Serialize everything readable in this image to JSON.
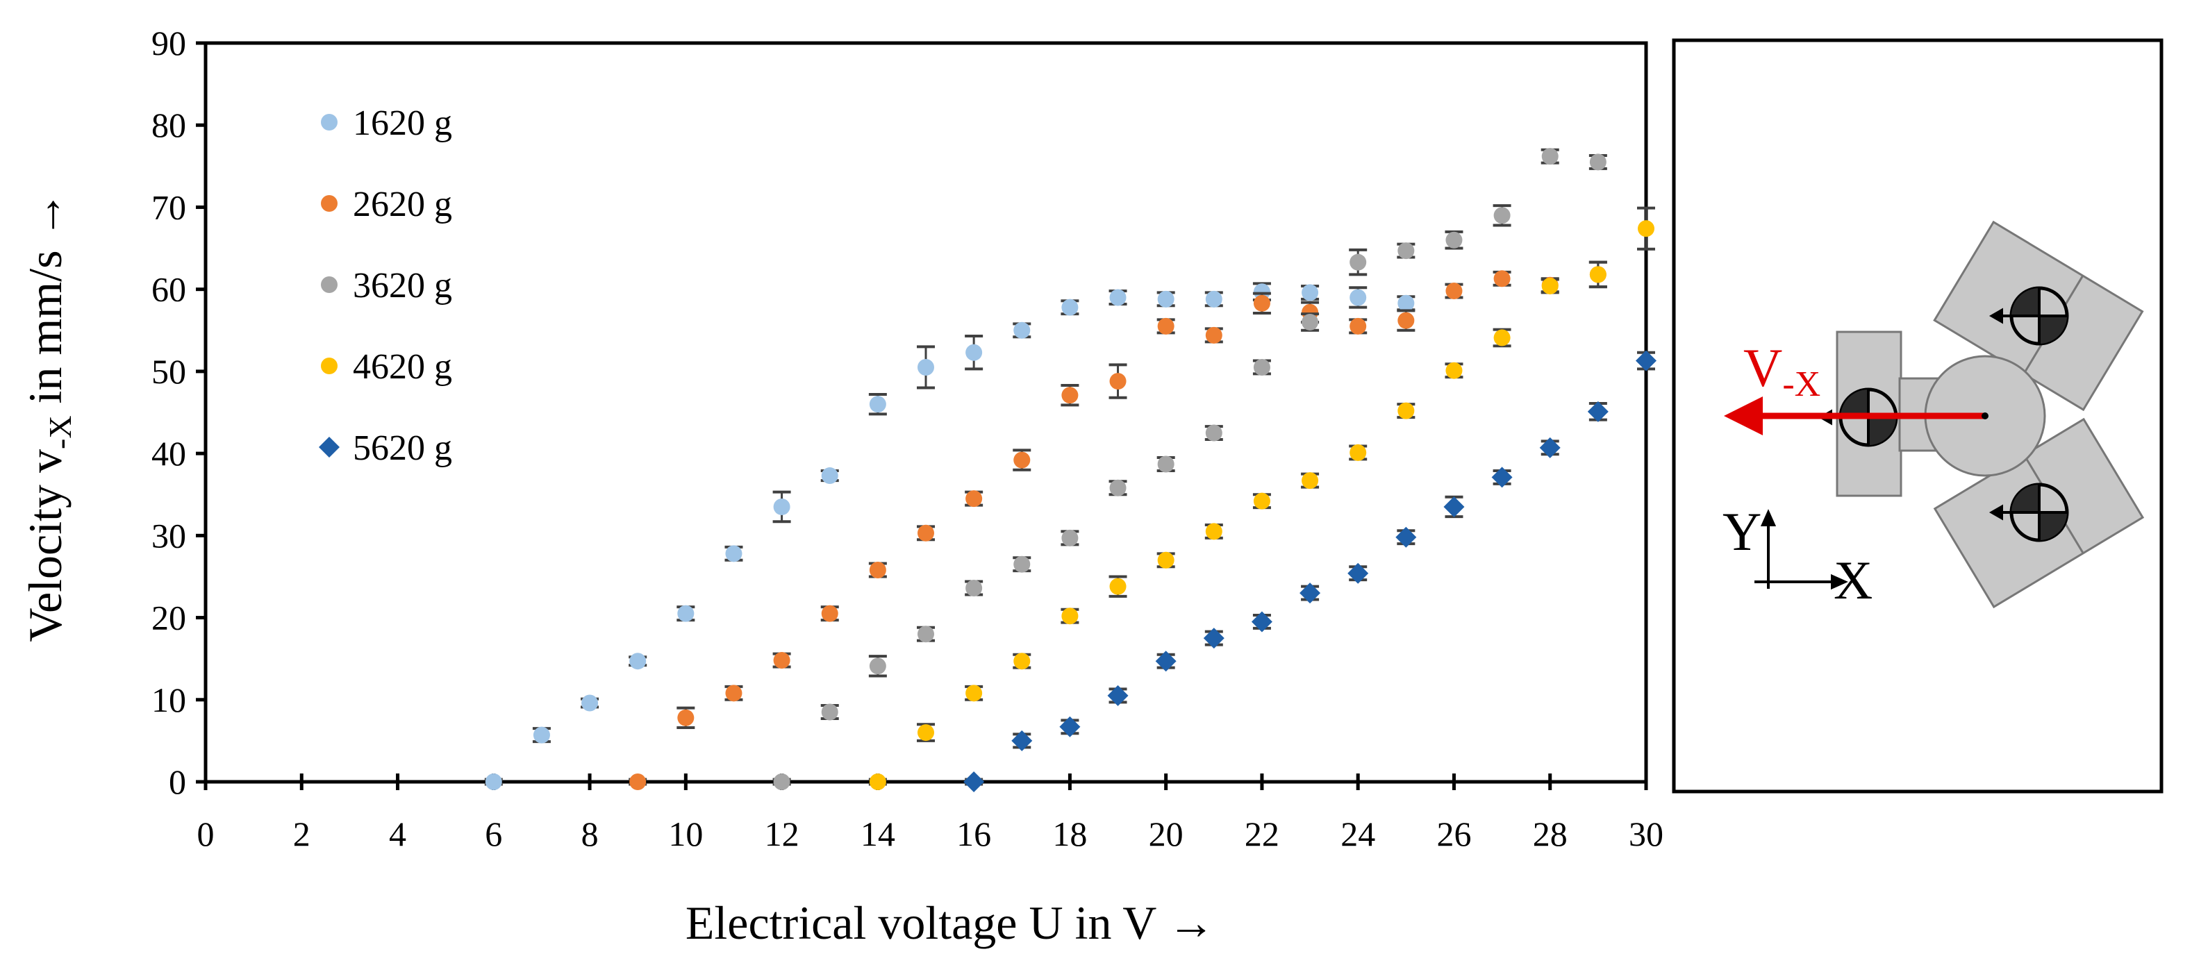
{
  "chart_data": {
    "type": "scatter",
    "title": "",
    "xlabel": "Electrical voltage U in V →",
    "ylabel_main": "Velocity v",
    "ylabel_sub": "-X",
    "ylabel_rest": " in mm/s →",
    "xlim": [
      0,
      30
    ],
    "ylim": [
      0,
      90
    ],
    "xticks": [
      0,
      2,
      4,
      6,
      8,
      10,
      12,
      14,
      16,
      18,
      20,
      22,
      24,
      26,
      28,
      30
    ],
    "yticks": [
      0,
      10,
      20,
      30,
      40,
      50,
      60,
      70,
      80,
      90
    ],
    "legend_position": "top-left",
    "series": [
      {
        "name": "1620 g",
        "color": "#9dc3e6",
        "marker": "circle",
        "x": [
          6,
          7,
          8,
          9,
          10,
          11,
          12,
          13,
          14,
          15,
          16,
          17,
          18,
          19,
          20,
          21,
          22,
          23,
          24,
          25
        ],
        "y": [
          0,
          5.7,
          9.6,
          14.7,
          20.5,
          27.8,
          33.5,
          37.3,
          46,
          50.5,
          52.3,
          55,
          57.8,
          59,
          58.8,
          58.8,
          59.7,
          59.6,
          59,
          58.3
        ],
        "err": [
          0.3,
          0.8,
          0.5,
          0.5,
          0.8,
          0.8,
          1.8,
          0.6,
          1.2,
          2.5,
          2,
          0.8,
          0.8,
          0.8,
          0.8,
          0.8,
          1,
          0.8,
          1.2,
          0.8
        ]
      },
      {
        "name": "2620 g",
        "color": "#ed7d31",
        "marker": "circle",
        "x": [
          9,
          10,
          11,
          12,
          13,
          14,
          15,
          16,
          17,
          18,
          19,
          20,
          21,
          22,
          23,
          24,
          25,
          26,
          27,
          28,
          29
        ],
        "y": [
          0,
          7.8,
          10.8,
          14.8,
          20.5,
          25.8,
          30.3,
          34.5,
          39.2,
          47.1,
          48.8,
          55.5,
          54.4,
          58.3,
          57.2,
          55.5,
          56.2,
          59.8,
          61.3,
          60.5,
          61.8
        ],
        "err": [
          0.3,
          1.2,
          0.8,
          0.8,
          0.8,
          0.8,
          0.8,
          0.8,
          1.2,
          1.2,
          2,
          0.8,
          0.8,
          1.2,
          1.2,
          0.8,
          1.2,
          0.8,
          0.8,
          0.8,
          1.5
        ]
      },
      {
        "name": "3620 g",
        "color": "#a5a5a5",
        "marker": "circle",
        "x": [
          12,
          13,
          14,
          15,
          16,
          17,
          18,
          19,
          20,
          21,
          22,
          23,
          24,
          25,
          26,
          27,
          28,
          29
        ],
        "y": [
          0,
          8.5,
          14.1,
          18,
          23.6,
          26.5,
          29.7,
          35.8,
          38.7,
          42.5,
          50.5,
          56,
          63.3,
          64.7,
          66,
          69,
          76.2,
          75.5
        ],
        "err": [
          0.3,
          0.8,
          1.2,
          0.8,
          0.8,
          0.8,
          0.8,
          0.8,
          0.8,
          0.8,
          0.8,
          1,
          1.5,
          0.8,
          1,
          1.2,
          0.8,
          0.8
        ]
      },
      {
        "name": "4620 g",
        "color": "#ffc000",
        "marker": "circle",
        "x": [
          14,
          15,
          16,
          17,
          18,
          19,
          20,
          21,
          22,
          23,
          24,
          25,
          26,
          27,
          28,
          29,
          30
        ],
        "y": [
          0,
          6,
          10.8,
          14.7,
          20.2,
          23.8,
          27,
          30.5,
          34.2,
          36.7,
          40.1,
          45.2,
          50.1,
          54.1,
          60.4,
          61.8,
          67.4
        ],
        "err": [
          0.3,
          1,
          0.8,
          0.8,
          0.8,
          1.2,
          0.8,
          0.8,
          0.8,
          0.8,
          0.8,
          0.8,
          0.8,
          1,
          0.8,
          1.5,
          2.5
        ]
      },
      {
        "name": "5620 g",
        "color": "#1f5fa8",
        "marker": "diamond",
        "x": [
          16,
          17,
          18,
          19,
          20,
          21,
          22,
          23,
          24,
          25,
          26,
          27,
          28,
          29,
          30
        ],
        "y": [
          0,
          5,
          6.7,
          10.5,
          14.7,
          17.5,
          19.5,
          23,
          25.4,
          29.8,
          33.5,
          37.1,
          40.7,
          45.1,
          51.3
        ],
        "err": [
          0.3,
          0.8,
          0.8,
          0.8,
          0.8,
          0.8,
          0.8,
          0.8,
          0.8,
          0.8,
          1.2,
          0.8,
          0.8,
          1,
          1
        ]
      }
    ]
  },
  "diagram": {
    "velocity_label": "V",
    "velocity_sub": "-X",
    "axis_y": "Y",
    "axis_x": "X",
    "arrow_color": "#e00000",
    "body_color": "#c8c8c8"
  }
}
